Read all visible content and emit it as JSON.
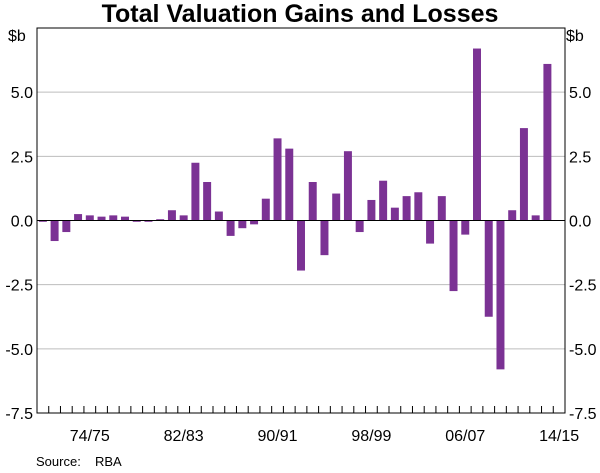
{
  "chart_data": {
    "type": "bar",
    "title": "Total Valuation Gains and Losses",
    "unit_left": "$b",
    "unit_right": "$b",
    "ylim": [
      -7.5,
      7.5
    ],
    "yticks": [
      "5.0",
      "2.5",
      "0.0",
      "-2.5",
      "-5.0",
      "-7.5"
    ],
    "ytick_values": [
      5.0,
      2.5,
      0.0,
      -2.5,
      -5.0,
      -7.5
    ],
    "xtick_labels": [
      "74/75",
      "82/83",
      "90/91",
      "98/99",
      "06/07",
      "14/15"
    ],
    "xtick_centers": [
      1975,
      1983,
      1991,
      1999,
      2007,
      2015
    ],
    "bar_color": "#7b3294",
    "series": [
      {
        "name": "Total valuation gains and losses",
        "x": [
          1971,
          1972,
          1973,
          1974,
          1975,
          1976,
          1977,
          1978,
          1979,
          1980,
          1981,
          1982,
          1983,
          1984,
          1985,
          1986,
          1987,
          1988,
          1989,
          1990,
          1991,
          1992,
          1993,
          1994,
          1995,
          1996,
          1997,
          1998,
          1999,
          2000,
          2001,
          2002,
          2003,
          2004,
          2005,
          2006,
          2007,
          2008,
          2009,
          2010,
          2011,
          2012,
          2013,
          2014,
          2015
        ],
        "values": [
          -0.05,
          -0.8,
          -0.45,
          0.25,
          0.2,
          0.15,
          0.2,
          0.15,
          -0.05,
          -0.05,
          0.05,
          0.4,
          0.2,
          2.25,
          1.5,
          0.35,
          -0.6,
          -0.3,
          -0.15,
          0.85,
          3.2,
          2.8,
          -1.95,
          1.5,
          -1.35,
          1.05,
          2.7,
          -0.45,
          0.8,
          1.55,
          0.5,
          0.95,
          1.1,
          -0.9,
          0.95,
          -2.75,
          -0.55,
          6.7,
          -3.75,
          -5.8,
          0.4,
          3.6,
          0.2,
          6.1,
          0.0
        ]
      }
    ]
  },
  "footer": {
    "source_label": "Source:",
    "source_value": "RBA"
  }
}
